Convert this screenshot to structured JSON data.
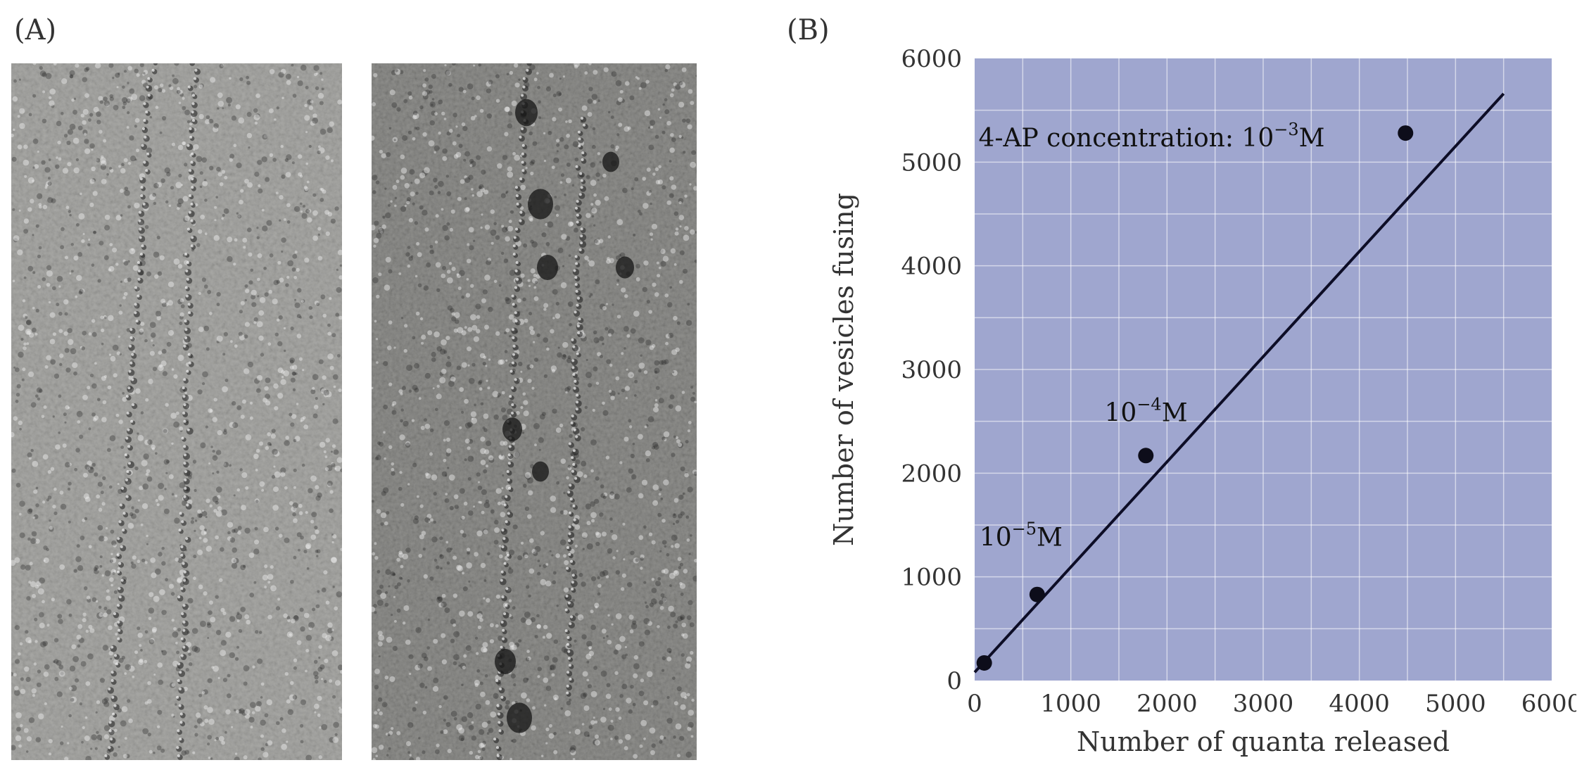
{
  "panels": {
    "a_label": "(A)",
    "b_label": "(B)"
  },
  "colors": {
    "plot_background": "#9fa6cf",
    "grid": "#ffffff",
    "line": "#0d0d26",
    "point": "#0d0d1a",
    "micrograph_left": "#a9a9a6",
    "micrograph_right": "#8f8f8c"
  },
  "chart_data": {
    "type": "scatter",
    "xlabel": "Number of quanta released",
    "ylabel": "Number of vesicles fusing",
    "xlim": [
      0,
      6000
    ],
    "ylim": [
      0,
      6000
    ],
    "x_ticks": [
      0,
      1000,
      2000,
      3000,
      4000,
      5000,
      6000
    ],
    "y_ticks": [
      0,
      1000,
      2000,
      3000,
      4000,
      5000,
      6000
    ],
    "grid": true,
    "points": [
      {
        "x": 100,
        "y": 170
      },
      {
        "x": 650,
        "y": 830
      },
      {
        "x": 1780,
        "y": 2170
      },
      {
        "x": 4480,
        "y": 5280
      }
    ],
    "fit_line": {
      "x": [
        0,
        5500
      ],
      "y": [
        80,
        5660
      ]
    },
    "annotations": [
      {
        "base": "10",
        "exp": "−5",
        "unit": "M",
        "x": 50,
        "y": 1300
      },
      {
        "base": "10",
        "exp": "−4",
        "unit": "M",
        "x": 1350,
        "y": 2500
      },
      {
        "text": "4-AP concentration: ",
        "base": "10",
        "exp": "−3",
        "unit": "M",
        "x": 40,
        "y": 5150
      }
    ]
  }
}
